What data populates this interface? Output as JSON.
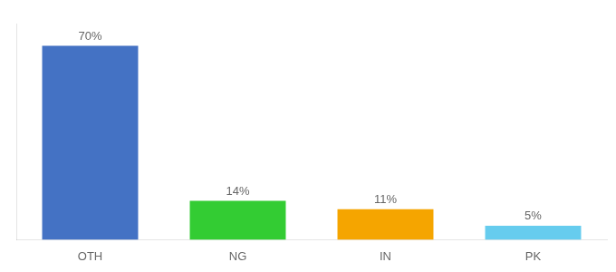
{
  "chart_data": {
    "type": "bar",
    "categories": [
      "OTH",
      "NG",
      "IN",
      "PK"
    ],
    "values": [
      70,
      14,
      11,
      5
    ],
    "value_labels": [
      "70%",
      "14%",
      "11%",
      "5%"
    ],
    "colors": [
      "#4472c4",
      "#33cc33",
      "#f5a500",
      "#66ccee"
    ],
    "data_labels": true,
    "ylim": [
      0,
      78
    ],
    "tick_labels": "x",
    "grid": false
  }
}
